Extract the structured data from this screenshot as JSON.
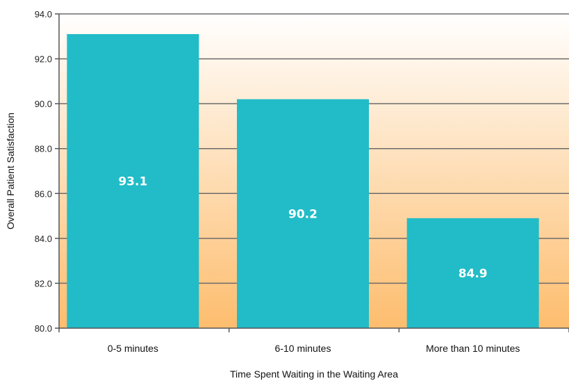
{
  "chart_data": {
    "type": "bar",
    "title": "",
    "xlabel": "Time Spent Waiting in the Waiting Area",
    "ylabel": "Overall Patient Satisfaction",
    "categories": [
      "0-5 minutes",
      "6-10 minutes",
      "More than 10 minutes"
    ],
    "values": [
      93.1,
      90.2,
      84.9
    ],
    "data_labels": [
      "93.1",
      "90.2",
      "84.9"
    ],
    "ylim": [
      80.0,
      94.0
    ],
    "yticks": [
      "80.0",
      "82.0",
      "84.0",
      "86.0",
      "88.0",
      "90.0",
      "92.0",
      "94.0"
    ],
    "grid": true,
    "legend": "none",
    "colors": {
      "bar": "#21bcc8",
      "gradient_top": "#ffffff",
      "gradient_bottom": "#fdbd6e",
      "grid": "#6b6b6b"
    }
  }
}
